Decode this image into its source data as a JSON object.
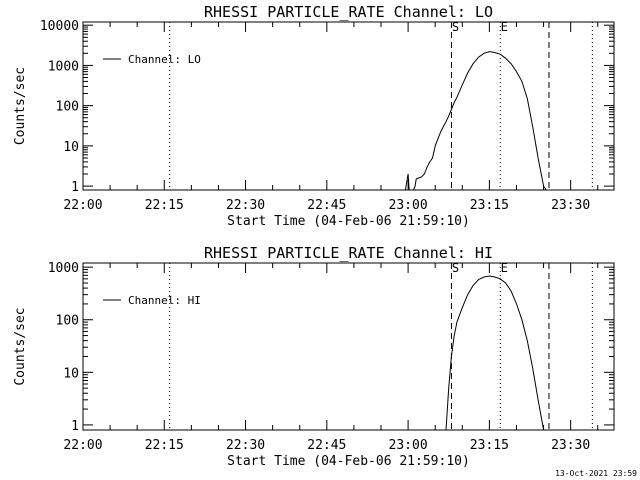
{
  "chart_data": [
    {
      "type": "line",
      "title": "RHESSI PARTICLE_RATE Channel: LO",
      "xlabel": "Start Time (04-Feb-06 21:59:10)",
      "ylabel": "Counts/sec",
      "y_scale": "log",
      "ylim": [
        0.8,
        12000
      ],
      "y_ticks": [
        1,
        10,
        100,
        1000,
        10000
      ],
      "y_tick_labels": [
        "1",
        "10",
        "100",
        "1000",
        "10000"
      ],
      "xlim": [
        "22:00",
        "23:38"
      ],
      "x_ticks": [
        "22:00",
        "22:15",
        "22:30",
        "22:45",
        "23:00",
        "23:15",
        "23:30"
      ],
      "legend": {
        "position": "top-left",
        "entry": "Channel: LO"
      },
      "markers": [
        {
          "label": "S",
          "time": "23:08",
          "style": "dashed"
        },
        {
          "label": "E",
          "time": "23:17",
          "style": "dotted"
        }
      ],
      "vlines": [
        {
          "time": "22:16",
          "style": "dotted"
        },
        {
          "time": "23:26",
          "style": "dashed"
        },
        {
          "time": "23:34",
          "style": "dotted"
        }
      ],
      "series": [
        {
          "x": [
            "22:59.5",
            "23:00",
            "23:00.2",
            "23:00.5",
            "23:01",
            "23:01.3",
            "23:01.5",
            "23:02",
            "23:02.5",
            "23:03",
            "23:03.5",
            "23:04",
            "23:04.5",
            "23:05",
            "23:05.5",
            "23:06",
            "23:06.5",
            "23:07",
            "23:07.5",
            "23:08",
            "23:08.5",
            "23:09",
            "23:10",
            "23:11",
            "23:12",
            "23:13",
            "23:14",
            "23:15",
            "23:16",
            "23:17",
            "23:18",
            "23:19",
            "23:20",
            "23:21",
            "23:22",
            "23:23",
            "23:24",
            "23:25",
            "23:25.5"
          ],
          "y": [
            0.8,
            2,
            0.8,
            0.8,
            0.8,
            1,
            1.5,
            1.6,
            1.7,
            2,
            3,
            4,
            5,
            10,
            15,
            22,
            30,
            40,
            55,
            80,
            120,
            160,
            330,
            650,
            1100,
            1600,
            2000,
            2200,
            2100,
            1900,
            1500,
            1100,
            700,
            400,
            150,
            30,
            5,
            1,
            0.8
          ]
        }
      ]
    },
    {
      "type": "line",
      "title": "RHESSI PARTICLE_RATE Channel: HI",
      "xlabel": "Start Time (04-Feb-06 21:59:10)",
      "ylabel": "Counts/sec",
      "y_scale": "log",
      "ylim": [
        0.8,
        1200
      ],
      "y_ticks": [
        1,
        10,
        100,
        1000
      ],
      "y_tick_labels": [
        "1",
        "10",
        "100",
        "1000"
      ],
      "xlim": [
        "22:00",
        "23:38"
      ],
      "x_ticks": [
        "22:00",
        "22:15",
        "22:30",
        "22:45",
        "23:00",
        "23:15",
        "23:30"
      ],
      "legend": {
        "position": "top-left",
        "entry": "Channel: HI"
      },
      "markers": [
        {
          "label": "S",
          "time": "23:08",
          "style": "dashed"
        },
        {
          "label": "E",
          "time": "23:17",
          "style": "dotted"
        }
      ],
      "vlines": [
        {
          "time": "22:16",
          "style": "dotted"
        },
        {
          "time": "23:26",
          "style": "dashed"
        },
        {
          "time": "23:34",
          "style": "dotted"
        }
      ],
      "series": [
        {
          "x": [
            "23:07",
            "23:07.5",
            "23:08",
            "23:08.5",
            "23:09",
            "23:10",
            "23:11",
            "23:12",
            "23:13",
            "23:14",
            "23:15",
            "23:16",
            "23:17",
            "23:18",
            "23:19",
            "23:20",
            "23:21",
            "23:22",
            "23:23",
            "23:24",
            "23:25"
          ],
          "y": [
            0.8,
            5,
            20,
            50,
            90,
            170,
            300,
            450,
            580,
            650,
            680,
            650,
            600,
            500,
            350,
            200,
            100,
            40,
            12,
            3,
            0.8
          ]
        }
      ]
    }
  ],
  "timestamp": "13-Oct-2021 23:59"
}
